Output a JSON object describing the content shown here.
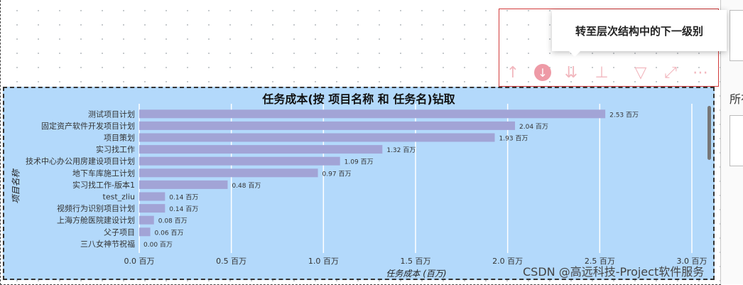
{
  "toolbar": {
    "tooltip_text": "转至层次结构中的下一级别",
    "icons": [
      "arrow-up-icon",
      "drill-down-icon",
      "expand-all-down-icon",
      "hierarchy-icon",
      "filter-icon",
      "focus-mode-icon",
      "more-options-icon"
    ]
  },
  "right_panel": {
    "label": "所有"
  },
  "watermark": "CSDN @高远科技-Project软件服务",
  "colors": {
    "background": "#b3d9fb",
    "bar": "#a2a4d6",
    "toolbar_icon": "#f2b8bf",
    "frame": "#d23b3b"
  },
  "chart_data": {
    "type": "bar",
    "orientation": "horizontal",
    "title": "任务成本(按 项目名称 和 任务名)钻取",
    "xlabel": "任务成本 (百万)",
    "ylabel": "项目名称",
    "xlim": [
      0,
      3.0
    ],
    "xticks": [
      "0.0 百万",
      "0.5 百万",
      "1.0 百万",
      "1.5 百万",
      "2.0 百万",
      "2.5 百万",
      "3.0 百万"
    ],
    "xtick_values": [
      0,
      0.5,
      1.0,
      1.5,
      2.0,
      2.5,
      3.0
    ],
    "grid": "vertical",
    "categories": [
      "测试项目计划",
      "固定资产软件开发项目计划",
      "项目策划",
      "实习找工作",
      "技术中心办公用房建设项目计划",
      "地下车库施工计划",
      "实习找工作-版本1",
      "test_zliu",
      "视频行为识别项目计划",
      "上海方舱医院建设计划",
      "父子项目",
      "三八女神节祝福"
    ],
    "values": [
      2.53,
      2.04,
      1.93,
      1.32,
      1.09,
      0.97,
      0.48,
      0.14,
      0.14,
      0.08,
      0.06,
      0.0
    ],
    "data_labels": [
      "2.53 百万",
      "2.04 百万",
      "1.93 百万",
      "1.32 百万",
      "1.09 百万",
      "0.97 百万",
      "0.48 百万",
      "0.14 百万",
      "0.14 百万",
      "0.08 百万",
      "0.06 百万",
      "0.00 百万"
    ]
  }
}
